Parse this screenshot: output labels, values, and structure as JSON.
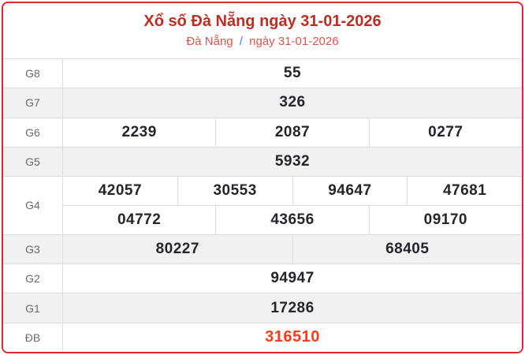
{
  "header": {
    "title": "Xổ số Đà Nẵng ngày 31-01-2026",
    "breadcrumb": {
      "region": "Đà Nẵng",
      "separator": "/",
      "date": "ngày 31-01-2026"
    }
  },
  "results": {
    "rows": [
      {
        "label": "G8",
        "groups": [
          [
            "55"
          ]
        ]
      },
      {
        "label": "G7",
        "groups": [
          [
            "326"
          ]
        ]
      },
      {
        "label": "G6",
        "groups": [
          [
            "2239",
            "2087",
            "0277"
          ]
        ]
      },
      {
        "label": "G5",
        "groups": [
          [
            "5932"
          ]
        ]
      },
      {
        "label": "G4",
        "groups": [
          [
            "42057",
            "30553",
            "94647",
            "47681"
          ],
          [
            "04772",
            "43656",
            "09170"
          ]
        ]
      },
      {
        "label": "G3",
        "groups": [
          [
            "80227",
            "68405"
          ]
        ]
      },
      {
        "label": "G2",
        "groups": [
          [
            "94947"
          ]
        ]
      },
      {
        "label": "G1",
        "groups": [
          [
            "17286"
          ]
        ]
      },
      {
        "label": "ĐB",
        "groups": [
          [
            "316510"
          ]
        ]
      }
    ]
  },
  "colors": {
    "card_border_red": "#e02b2b",
    "title_red": "#bb2e24",
    "breadcrumb_red": "#dd534b",
    "breadcrumb_separator_blue": "#3d7fd9",
    "special_prize_red": "#ff3b1c",
    "alt_row_bg": "#f1f1f1",
    "grid_line_gray": "#dddddd",
    "label_gray": "#6a6a6e",
    "value_dark": "#24262c"
  }
}
